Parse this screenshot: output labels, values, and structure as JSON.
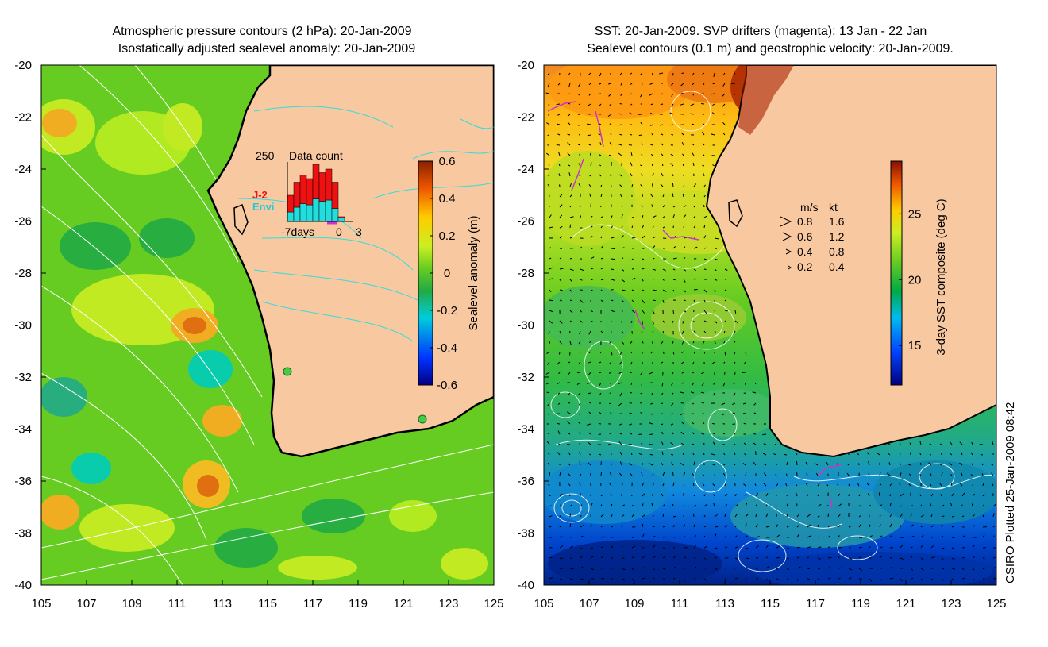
{
  "left_panel": {
    "title_line1": "Atmospheric pressure contours (2 hPa): 20-Jan-2009",
    "title_line2": "Isostatically adjusted sealevel anomaly: 20-Jan-2009",
    "colorbar_label": "Sealevel anomaly (m)",
    "colorbar_ticks": [
      "0.6",
      "0.4",
      "0.2",
      "0",
      "-0.2",
      "-0.4",
      "-0.6"
    ],
    "inset": {
      "title": "Data count",
      "ymax_label": "250",
      "series1": "J-2",
      "series2": "Envi",
      "xlabels": [
        "-7days",
        "0",
        "3"
      ]
    }
  },
  "right_panel": {
    "title_line1": "SST: 20-Jan-2009. SVP drifters (magenta): 13 Jan - 22 Jan",
    "title_line2": "Sealevel contours (0.1 m) and geostrophic velocity: 20-Jan-2009.",
    "colorbar_label": "3-day SST composite (deg C)",
    "colorbar_ticks": [
      "25",
      "20",
      "15"
    ],
    "velocity_legend": {
      "header_ms": "m/s",
      "header_kt": "kt",
      "rows": [
        {
          "ms": "0.8",
          "kt": "1.6"
        },
        {
          "ms": "0.6",
          "kt": "1.2"
        },
        {
          "ms": "0.4",
          "kt": "0.8"
        },
        {
          "ms": "0.2",
          "kt": "0.4"
        }
      ]
    }
  },
  "credit": "CSIRO Plotted 25-Jan-2009 08:42",
  "colors": {
    "land": "#f8c8a0",
    "sea_green": "#66cc22",
    "contour_cyan": "#33dddd",
    "drifter": "#cc33cc"
  },
  "chart_data": [
    {
      "type": "heatmap",
      "title": "Atmospheric pressure contours (2 hPa): 20-Jan-2009 / Isostatically adjusted sealevel anomaly: 20-Jan-2009",
      "xlabel": "",
      "ylabel": "",
      "xlim": [
        105,
        125
      ],
      "ylim": [
        -40,
        -20
      ],
      "x_ticks": [
        "105",
        "107",
        "109",
        "111",
        "113",
        "115",
        "117",
        "119",
        "121",
        "123",
        "125"
      ],
      "y_ticks": [
        "-20",
        "-22",
        "-24",
        "-26",
        "-28",
        "-30",
        "-32",
        "-34",
        "-36",
        "-38",
        "-40"
      ],
      "colorbar": {
        "label": "Sealevel anomaly (m)",
        "range": [
          -0.6,
          0.6
        ]
      },
      "inset_bar": {
        "title": "Data count",
        "series": [
          {
            "name": "J-2",
            "values": [
              70,
              105,
              120,
              110,
              145,
              120,
              130,
              110,
              5,
              0
            ]
          },
          {
            "name": "Envi",
            "values": [
              40,
              60,
              75,
              70,
              95,
              85,
              90,
              55,
              15,
              0
            ]
          }
        ],
        "xrange": [
          -7,
          3
        ]
      }
    },
    {
      "type": "heatmap",
      "title": "SST: 20-Jan-2009. SVP drifters (magenta): 13 Jan - 22 Jan / Sealevel contours (0.1 m) and geostrophic velocity: 20-Jan-2009.",
      "xlabel": "",
      "ylabel": "",
      "xlim": [
        105,
        125
      ],
      "ylim": [
        -40,
        -20
      ],
      "x_ticks": [
        "105",
        "107",
        "109",
        "111",
        "113",
        "115",
        "117",
        "119",
        "121",
        "123",
        "125"
      ],
      "y_ticks": [
        "-20",
        "-22",
        "-24",
        "-26",
        "-28",
        "-30",
        "-32",
        "-34",
        "-36",
        "-38",
        "-40"
      ],
      "colorbar": {
        "label": "3-day SST composite (deg C)",
        "range": [
          12,
          29
        ]
      }
    }
  ]
}
